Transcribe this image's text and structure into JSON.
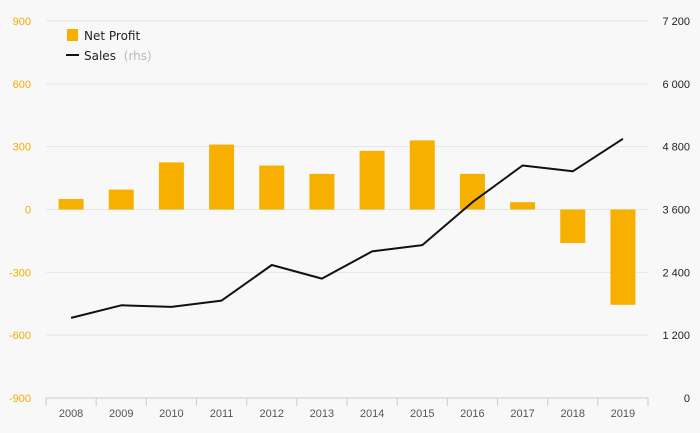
{
  "chart_data": {
    "type": "bar",
    "categories": [
      "2008",
      "2009",
      "2010",
      "2011",
      "2012",
      "2013",
      "2014",
      "2015",
      "2016",
      "2017",
      "2018",
      "2019"
    ],
    "series": [
      {
        "name": "Net Profit",
        "type": "bar",
        "axis": "left",
        "color": "#f7b000",
        "values": [
          50,
          95,
          225,
          310,
          210,
          170,
          280,
          330,
          170,
          35,
          -160,
          -455
        ]
      },
      {
        "name": "Sales",
        "name_suffix": "(rhs)",
        "type": "line",
        "axis": "right",
        "color": "#111111",
        "values": [
          1530,
          1770,
          1740,
          1860,
          2540,
          2280,
          2800,
          2920,
          3740,
          4440,
          4330,
          4950
        ]
      }
    ],
    "ylim_left": [
      -900,
      900
    ],
    "yticks_left": [
      "900",
      "600",
      "300",
      "0",
      "-300",
      "-600",
      "-900"
    ],
    "yticks_left_values": [
      900,
      600,
      300,
      0,
      -300,
      -600,
      -900
    ],
    "ylim_right": [
      0,
      7200
    ],
    "yticks_right": [
      "7 200",
      "6 000",
      "4 800",
      "3 600",
      "2 400",
      "1 200",
      "0"
    ],
    "yticks_right_values": [
      7200,
      6000,
      4800,
      3600,
      2400,
      1200,
      0
    ],
    "title": "",
    "xlabel": "",
    "ylabel": "",
    "grid": true,
    "legend_position": "top-left"
  }
}
